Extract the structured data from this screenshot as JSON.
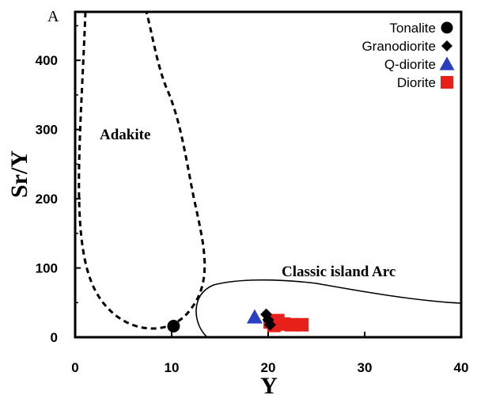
{
  "panel_label": "A",
  "chart_data": {
    "type": "scatter",
    "xlabel": "Y",
    "ylabel": "Sr/Y",
    "xlim": [
      0,
      40
    ],
    "ylim": [
      0,
      470
    ],
    "x_ticks": [
      "0",
      "10",
      "20",
      "30",
      "40"
    ],
    "y_ticks": [
      "0",
      "100",
      "200",
      "300",
      "400"
    ],
    "regions": [
      {
        "label": "Adakite",
        "style": "dashed"
      },
      {
        "label": "Classic island Arc",
        "style": "solid"
      }
    ],
    "legend_position": "top-right",
    "series": [
      {
        "name": "Tonalite",
        "marker": "circle",
        "color": "#000000",
        "points": [
          {
            "x": 10.2,
            "y": 16
          }
        ]
      },
      {
        "name": "Granodiorite",
        "marker": "diamond",
        "color": "#000000",
        "points": [
          {
            "x": 19.8,
            "y": 33
          },
          {
            "x": 20.0,
            "y": 25
          },
          {
            "x": 20.2,
            "y": 18
          }
        ]
      },
      {
        "name": "Q-diorite",
        "marker": "triangle",
        "color": "#2a3fc0",
        "points": [
          {
            "x": 18.6,
            "y": 29
          }
        ]
      },
      {
        "name": "Diorite",
        "marker": "square",
        "color": "#e8201a",
        "points": [
          {
            "x": 20.2,
            "y": 22
          },
          {
            "x": 21.0,
            "y": 24
          },
          {
            "x": 21.6,
            "y": 19
          },
          {
            "x": 22.4,
            "y": 18
          },
          {
            "x": 23.5,
            "y": 18
          },
          {
            "x": 20.6,
            "y": 17
          }
        ]
      }
    ]
  }
}
